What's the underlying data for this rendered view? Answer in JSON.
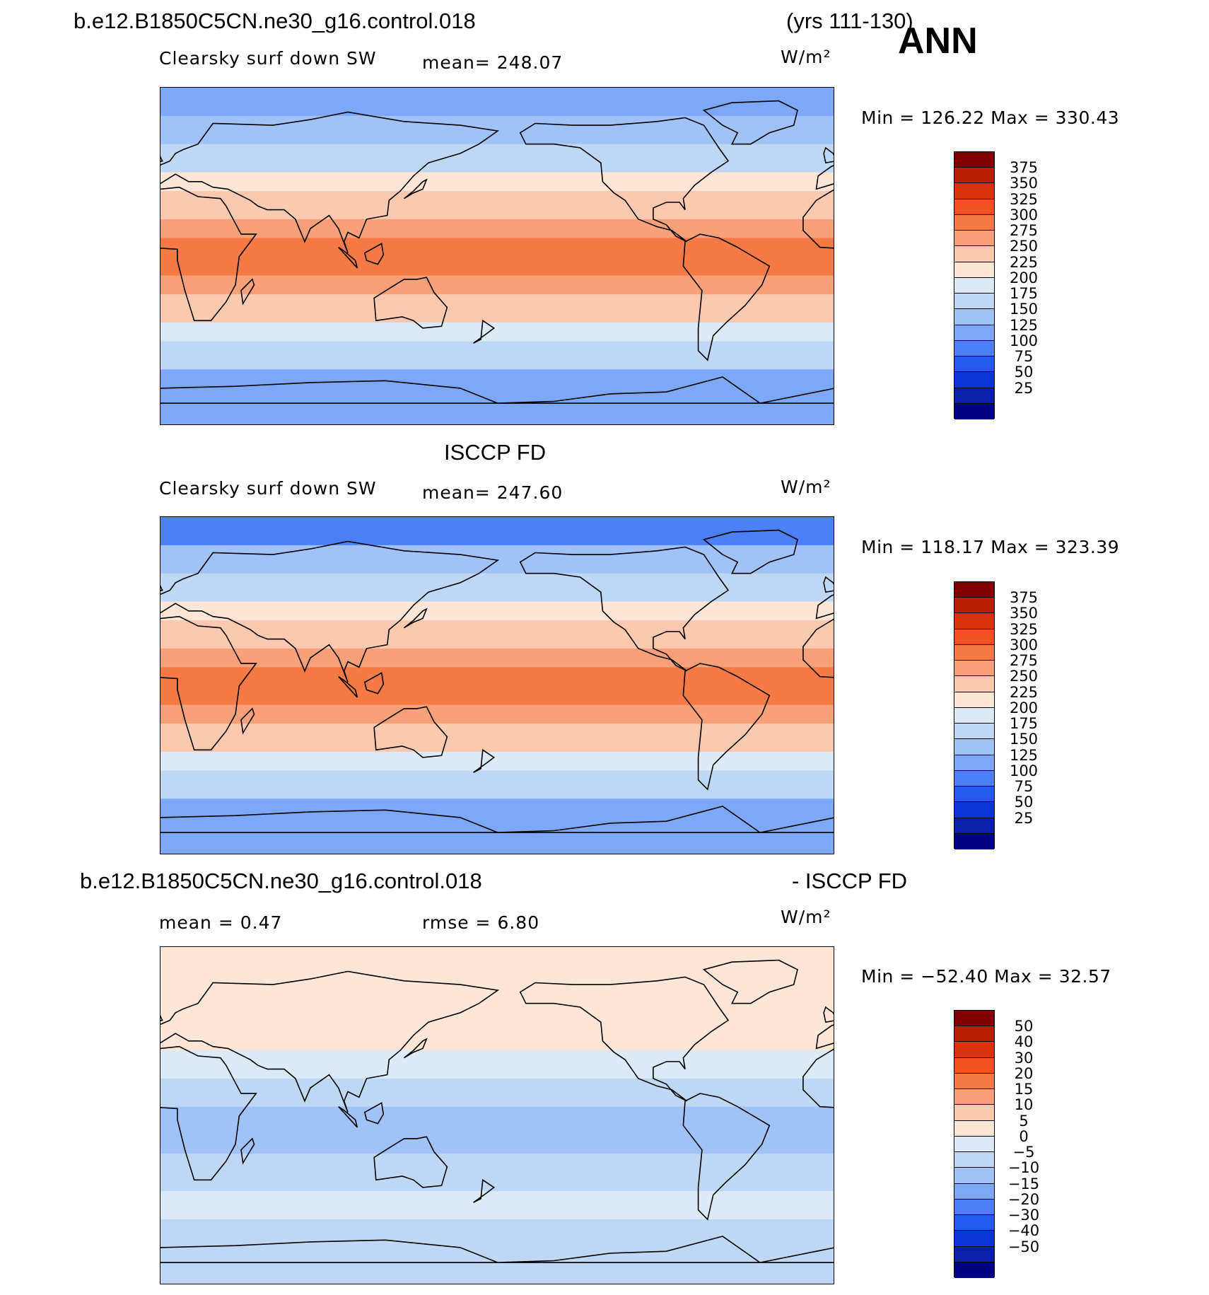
{
  "header": {
    "case_name": "b.e12.B1850C5CN.ne30_g16.control.018",
    "years": "(yrs 111-130)",
    "season": "ANN"
  },
  "panels": [
    {
      "id": "model",
      "title": "",
      "variable": "Clearsky surf down SW",
      "stat1_text": "mean=  248.07",
      "stat2_text": "",
      "units": "W/m²",
      "minmax_text": "Min  =  126.22  Max  =  330.43",
      "colorbar_labels": [
        "375",
        "350",
        "325",
        "300",
        "275",
        "250",
        "225",
        "200",
        "175",
        "150",
        "125",
        "100",
        "75",
        "50",
        "25"
      ]
    },
    {
      "id": "obs",
      "title": "ISCCP FD",
      "variable": "Clearsky surf down SW",
      "stat1_text": "mean=  247.60",
      "stat2_text": "",
      "units": "W/m²",
      "minmax_text": "Min  =  118.17  Max  =  323.39",
      "colorbar_labels": [
        "375",
        "350",
        "325",
        "300",
        "275",
        "250",
        "225",
        "200",
        "175",
        "150",
        "125",
        "100",
        "75",
        "50",
        "25"
      ]
    },
    {
      "id": "diff",
      "title_left": "b.e12.B1850C5CN.ne30_g16.control.018",
      "title_right": "- ISCCP FD",
      "variable": "",
      "stat1_text": "mean =      0.47",
      "stat2_text": "rmse =      6.80",
      "units": "W/m²",
      "minmax_text": "Min  =  −52.40  Max  =     32.57",
      "colorbar_labels": [
        "50",
        "40",
        "30",
        "20",
        "15",
        "10",
        "5",
        "0",
        "−5",
        "−10",
        "−15",
        "−20",
        "−30",
        "−40",
        "−50"
      ]
    }
  ],
  "colors": {
    "palette": [
      "#7f0000",
      "#b32000",
      "#d9330d",
      "#f2521e",
      "#f57a45",
      "#f7a07a",
      "#fbc9ae",
      "#fde6d6",
      "#dceaf7",
      "#bdd7f5",
      "#9fc2f7",
      "#7da7f7",
      "#4d7ff5",
      "#2459ef",
      "#0b34d9",
      "#0a1fa8",
      "#000080"
    ]
  },
  "chart_data": [
    {
      "type": "heatmap",
      "title": "Clearsky surf down SW",
      "units": "W/m²",
      "mean": 248.07,
      "min": 126.22,
      "max": 330.43,
      "contour_levels": [
        25,
        50,
        75,
        100,
        125,
        150,
        175,
        200,
        225,
        250,
        275,
        300,
        325,
        350,
        375
      ],
      "latitude_bands_approx": [
        {
          "lat": [
            75,
            90
          ],
          "value": 130
        },
        {
          "lat": [
            60,
            75
          ],
          "value": 155
        },
        {
          "lat": [
            45,
            60
          ],
          "value": 190
        },
        {
          "lat": [
            35,
            45
          ],
          "value": 235
        },
        {
          "lat": [
            20,
            35
          ],
          "value": 260
        },
        {
          "lat": [
            10,
            20
          ],
          "value": 285
        },
        {
          "lat": [
            -10,
            10
          ],
          "value": 305
        },
        {
          "lat": [
            -20,
            -10
          ],
          "value": 290
        },
        {
          "lat": [
            -35,
            -20
          ],
          "value": 260
        },
        {
          "lat": [
            -45,
            -35
          ],
          "value": 220
        },
        {
          "lat": [
            -60,
            -45
          ],
          "value": 180
        },
        {
          "lat": [
            -90,
            -60
          ],
          "value": 140
        }
      ]
    },
    {
      "type": "heatmap",
      "title": "Clearsky surf down SW",
      "units": "W/m²",
      "mean": 247.6,
      "min": 118.17,
      "max": 323.39,
      "contour_levels": [
        25,
        50,
        75,
        100,
        125,
        150,
        175,
        200,
        225,
        250,
        275,
        300,
        325,
        350,
        375
      ],
      "latitude_bands_approx": [
        {
          "lat": [
            75,
            90
          ],
          "value": 120
        },
        {
          "lat": [
            60,
            75
          ],
          "value": 150
        },
        {
          "lat": [
            45,
            60
          ],
          "value": 185
        },
        {
          "lat": [
            35,
            45
          ],
          "value": 235
        },
        {
          "lat": [
            20,
            35
          ],
          "value": 265
        },
        {
          "lat": [
            10,
            20
          ],
          "value": 290
        },
        {
          "lat": [
            -10,
            10
          ],
          "value": 310
        },
        {
          "lat": [
            -20,
            -10
          ],
          "value": 290
        },
        {
          "lat": [
            -35,
            -20
          ],
          "value": 260
        },
        {
          "lat": [
            -45,
            -35
          ],
          "value": 220
        },
        {
          "lat": [
            -60,
            -45
          ],
          "value": 175
        },
        {
          "lat": [
            -90,
            -60
          ],
          "value": 135
        }
      ]
    },
    {
      "type": "heatmap",
      "title": "",
      "units": "W/m²",
      "mean": 0.47,
      "rmse": 6.8,
      "min": -52.4,
      "max": 32.57,
      "contour_levels": [
        -50,
        -40,
        -30,
        -20,
        -15,
        -10,
        -5,
        0,
        5,
        10,
        15,
        20,
        30,
        40,
        50
      ],
      "latitude_bands_approx": [
        {
          "lat": [
            60,
            90
          ],
          "value": 6
        },
        {
          "lat": [
            35,
            60
          ],
          "value": 9
        },
        {
          "lat": [
            20,
            35
          ],
          "value": 4
        },
        {
          "lat": [
            5,
            20
          ],
          "value": -3
        },
        {
          "lat": [
            -20,
            5
          ],
          "value": -7
        },
        {
          "lat": [
            -40,
            -20
          ],
          "value": -3
        },
        {
          "lat": [
            -55,
            -40
          ],
          "value": 2
        },
        {
          "lat": [
            -90,
            -55
          ],
          "value": -2
        }
      ]
    }
  ]
}
